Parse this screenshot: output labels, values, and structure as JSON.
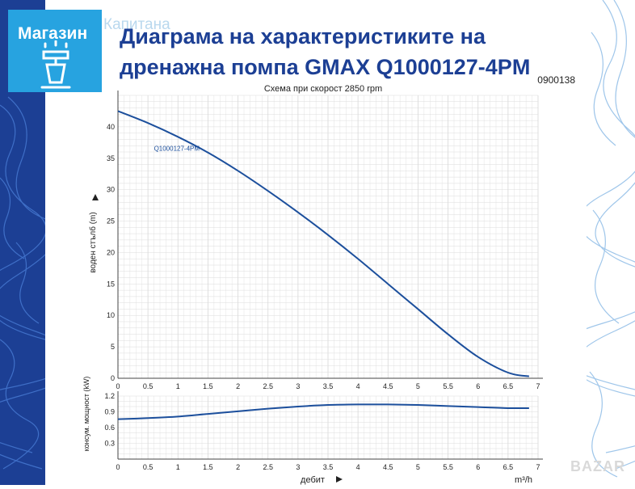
{
  "brand": {
    "logo_text": "Магазин",
    "ghost_text": "Капитана"
  },
  "header": {
    "title": "Диаграма на характеристиките на дренажна помпа GMAX Q1000127-4PM",
    "code": "0900138",
    "subtitle": "Схема при скорост 2850 rpm"
  },
  "watermark": "BAZAR",
  "colors": {
    "curve": "#1c4f9c",
    "title": "#1c3f94",
    "grid": "#dcdcdc",
    "logo_bg": "#27a3e0"
  },
  "chart_data": [
    {
      "type": "line",
      "xlabel": "",
      "ylabel": "воден стълб (m)",
      "xlim": [
        0,
        7
      ],
      "ylim": [
        0,
        45
      ],
      "xticks": [
        0,
        0.5,
        1,
        1.5,
        2,
        2.5,
        3,
        3.5,
        4,
        4.5,
        5,
        5.5,
        6,
        6.5,
        7
      ],
      "xtick_labels": [
        "0",
        "0.5",
        "1",
        "1.5",
        "2",
        "2.5",
        "3",
        "3.5",
        "4",
        "4.5",
        "5",
        "5.5",
        "6",
        "6.5",
        "7"
      ],
      "yticks": [
        0,
        5,
        10,
        15,
        20,
        25,
        30,
        35,
        40
      ],
      "ytick_labels": [
        "0",
        "5",
        "10",
        "15",
        "20",
        "25",
        "30",
        "35",
        "40"
      ],
      "grid": true,
      "series": [
        {
          "name": "Q1000127-4PM",
          "x": [
            0,
            0.5,
            1,
            1.5,
            2,
            2.5,
            3,
            3.5,
            4,
            4.5,
            5,
            5.5,
            6,
            6.5,
            6.85
          ],
          "y": [
            42.5,
            40.6,
            38.4,
            35.9,
            33.0,
            29.8,
            26.4,
            22.8,
            19.0,
            15.0,
            11.0,
            7.0,
            3.4,
            0.9,
            0.3
          ]
        }
      ]
    },
    {
      "type": "line",
      "xlabel": "дебит",
      "xunit": "m³/h",
      "ylabel": "консум. мощност (kW)",
      "xlim": [
        0,
        7
      ],
      "ylim": [
        0,
        1.2
      ],
      "xticks": [
        0,
        0.5,
        1,
        1.5,
        2,
        2.5,
        3,
        3.5,
        4,
        4.5,
        5,
        5.5,
        6,
        6.5,
        7
      ],
      "xtick_labels": [
        "0",
        "0.5",
        "1",
        "1.5",
        "2",
        "2.5",
        "3",
        "3.5",
        "4",
        "4.5",
        "5",
        "5.5",
        "6",
        "6.5",
        "7"
      ],
      "yticks": [
        0.3,
        0.6,
        0.9,
        1.2
      ],
      "ytick_labels": [
        "0.3",
        "0.6",
        "0.9",
        "1.2"
      ],
      "grid": true,
      "series": [
        {
          "name": "",
          "x": [
            0,
            0.5,
            1,
            1.5,
            2,
            2.5,
            3,
            3.5,
            4,
            4.5,
            5,
            5.5,
            6,
            6.5,
            6.85
          ],
          "y": [
            0.76,
            0.78,
            0.81,
            0.86,
            0.91,
            0.96,
            1.0,
            1.03,
            1.04,
            1.04,
            1.03,
            1.01,
            0.99,
            0.97,
            0.97
          ]
        }
      ]
    }
  ]
}
